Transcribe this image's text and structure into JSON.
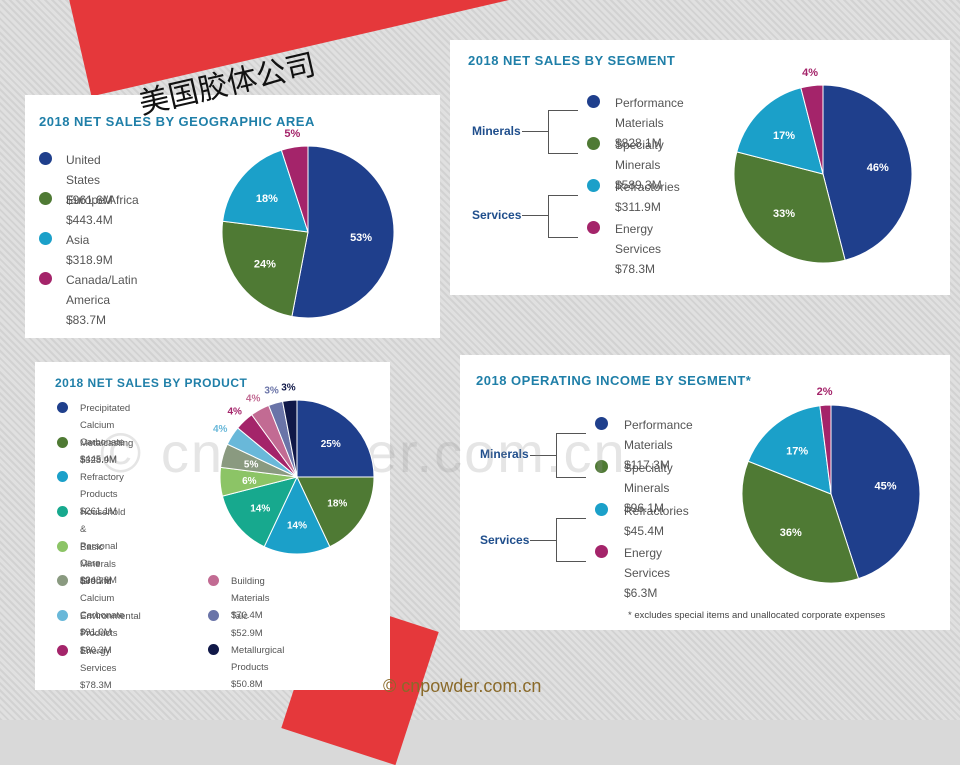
{
  "brand_text": "美国胶体公司",
  "watermark": "© cnpowder.com.cn",
  "credit": "© cnpowder.com.cn",
  "colors": {
    "navy": "#1f3f8c",
    "green": "#4f7a34",
    "cyan": "#1ba0c9",
    "magenta": "#a4246a",
    "teal": "#17a98e",
    "lightgreen": "#8cc466",
    "gray": "#8a9a80",
    "lightblue": "#69b8d9",
    "pink": "#c26b93",
    "slate": "#6a74a8",
    "darknavy": "#101848"
  },
  "geo": {
    "title": "2018 NET SALES BY GEOGRAPHIC AREA",
    "legend": [
      {
        "name": "United States",
        "value": "$961.6M",
        "color": "#1f3f8c"
      },
      {
        "name": "Europe/Africa",
        "value": "$443.4M",
        "color": "#4f7a34"
      },
      {
        "name": "Asia",
        "value": "$318.9M",
        "color": "#1ba0c9"
      },
      {
        "name": "Canada/Latin America",
        "value": "$83.7M",
        "color": "#a4246a"
      }
    ]
  },
  "segment": {
    "title": "2018 NET SALES BY SEGMENT",
    "groups": [
      "Minerals",
      "Services"
    ],
    "legend": [
      {
        "name": "Performance Materials",
        "value": "$828.1M",
        "color": "#1f3f8c"
      },
      {
        "name": "Specialty Minerals",
        "value": "$589.3M",
        "color": "#4f7a34"
      },
      {
        "name": "Refractories",
        "value": "$311.9M",
        "color": "#1ba0c9"
      },
      {
        "name": "Energy Services",
        "value": "$78.3M",
        "color": "#a4246a"
      }
    ]
  },
  "product": {
    "title": "2018 NET SALES BY PRODUCT",
    "legend_left": [
      {
        "name": "Precipitated Calcium Carbonate",
        "value": "$445.4M",
        "color": "#1f3f8c"
      },
      {
        "name": "Metalcasting",
        "value": "$328.9M",
        "color": "#4f7a34"
      },
      {
        "name": "Refractory Products",
        "value": "$261.1M",
        "color": "#1ba0c9"
      },
      {
        "name": "Household & Personal Care",
        "value": "$248.8M",
        "color": "#17a98e"
      },
      {
        "name": "Basic Minerals",
        "value": "$99.7M",
        "color": "#8cc466"
      },
      {
        "name": "Ground Calcium Carbonate",
        "value": "$91.0M",
        "color": "#8a9a80"
      },
      {
        "name": "Environmental Products",
        "value": "$80.3M",
        "color": "#69b8d9"
      },
      {
        "name": "Energy Services",
        "value": "$78.3M",
        "color": "#a4246a"
      }
    ],
    "legend_right": [
      {
        "name": "Building Materials",
        "value": "$70.4M",
        "color": "#c26b93"
      },
      {
        "name": "Talc",
        "value": "$52.9M",
        "color": "#6a74a8"
      },
      {
        "name": "Metallurgical Products",
        "value": "$50.8M",
        "color": "#101848"
      }
    ]
  },
  "income": {
    "title": "2018 OPERATING INCOME BY SEGMENT*",
    "groups": [
      "Minerals",
      "Services"
    ],
    "legend": [
      {
        "name": "Performance Materials",
        "value": "$117.3M",
        "color": "#1f3f8c"
      },
      {
        "name": "Specialty Minerals",
        "value": "$96.1M",
        "color": "#4f7a34"
      },
      {
        "name": "Refractories",
        "value": "$45.4M",
        "color": "#1ba0c9"
      },
      {
        "name": "Energy Services",
        "value": "$6.3M",
        "color": "#a4246a"
      }
    ],
    "footnote": "* excludes special items and unallocated corporate expenses"
  },
  "chart_data": [
    {
      "type": "pie",
      "title": "2018 NET SALES BY GEOGRAPHIC AREA",
      "categories": [
        "United States",
        "Europe/Africa",
        "Asia",
        "Canada/Latin America"
      ],
      "values": [
        53,
        24,
        18,
        5
      ],
      "labels": [
        "53%",
        "24%",
        "18%",
        "5%"
      ],
      "colors": [
        "#1f3f8c",
        "#4f7a34",
        "#1ba0c9",
        "#a4246a"
      ]
    },
    {
      "type": "pie",
      "title": "2018 NET SALES BY SEGMENT",
      "categories": [
        "Performance Materials",
        "Specialty Minerals",
        "Refractories",
        "Energy Services"
      ],
      "values": [
        46,
        33,
        17,
        4
      ],
      "labels": [
        "46%",
        "33%",
        "17%",
        "4%"
      ],
      "colors": [
        "#1f3f8c",
        "#4f7a34",
        "#1ba0c9",
        "#a4246a"
      ]
    },
    {
      "type": "pie",
      "title": "2018 NET SALES BY PRODUCT",
      "categories": [
        "Precipitated Calcium Carbonate",
        "Metalcasting",
        "Refractory Products",
        "Household & Personal Care",
        "Basic Minerals",
        "Ground Calcium Carbonate",
        "Environmental Products",
        "Energy Services",
        "Building Materials",
        "Talc",
        "Metallurgical Products"
      ],
      "values": [
        25,
        18,
        14,
        14,
        6,
        5,
        4,
        4,
        4,
        3,
        3
      ],
      "labels": [
        "25%",
        "18%",
        "14%",
        "14%",
        "6%",
        "5%",
        "4%",
        "4%",
        "4%",
        "3%",
        "3%"
      ],
      "colors": [
        "#1f3f8c",
        "#4f7a34",
        "#1ba0c9",
        "#17a98e",
        "#8cc466",
        "#8a9a80",
        "#69b8d9",
        "#a4246a",
        "#c26b93",
        "#6a74a8",
        "#101848"
      ]
    },
    {
      "type": "pie",
      "title": "2018 OPERATING INCOME BY SEGMENT*",
      "categories": [
        "Performance Materials",
        "Specialty Minerals",
        "Refractories",
        "Energy Services"
      ],
      "values": [
        45,
        36,
        17,
        2
      ],
      "labels": [
        "45%",
        "36%",
        "17%",
        "2%"
      ],
      "colors": [
        "#1f3f8c",
        "#4f7a34",
        "#1ba0c9",
        "#a4246a"
      ]
    }
  ]
}
